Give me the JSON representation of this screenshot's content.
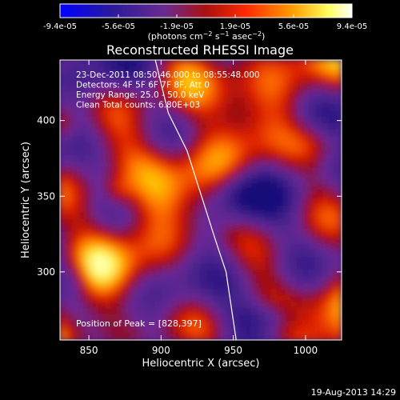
{
  "chart_data": {
    "type": "heatmap",
    "title": "Reconstructed RHESSI Image",
    "xlabel": "Heliocentric X (arcsec)",
    "ylabel": "Heliocentric Y (arcsec)",
    "xlim": [
      830,
      1025
    ],
    "ylim": [
      255,
      440
    ],
    "xticks": [
      "850",
      "900",
      "950",
      "1000"
    ],
    "yticks": [
      "400",
      "350",
      "300"
    ],
    "colorbar": {
      "ticks": [
        "-9.4e-05",
        "-5.6e-05",
        "-1.9e-05",
        "1.9e-05",
        "5.6e-05",
        "9.4e-05"
      ],
      "range": [
        -9.4e-05,
        9.4e-05
      ],
      "units_line": "(photons cm^-2 s^-1 asec^-2)",
      "colormap": "blue-purple-red-yellow-white"
    },
    "annotations": [
      "23-Dec-2011 08:50:46.000 to 08:55:48.000",
      "Detectors: 4F 5F 6F 7F 8F, Att 0",
      "Energy Range: 25.0 - 50.0 keV",
      "Clean     Total counts: 6.80E+03"
    ],
    "peak_label": "Position of Peak = [828,397]",
    "peak": [
      828,
      397
    ],
    "limb_curve": [
      [
        896,
        440
      ],
      [
        905,
        405
      ],
      [
        918,
        380
      ],
      [
        928,
        350
      ],
      [
        938,
        320
      ],
      [
        945,
        300
      ],
      [
        952,
        255
      ]
    ]
  },
  "footer": {
    "timestamp": "19-Aug-2013 14:29"
  },
  "colors": {
    "background": "#000000",
    "text": "#ffffff",
    "limb": "#ffffff"
  }
}
